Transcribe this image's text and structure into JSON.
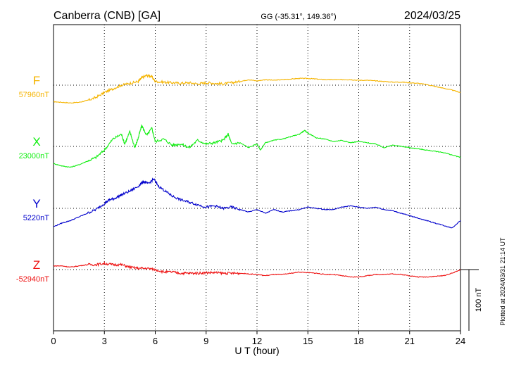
{
  "header": {
    "station": "Canberra (CNB)  [GA]",
    "coords": "GG (-35.31°, 149.36°)",
    "date": "2024/03/25"
  },
  "footer_note": "Plotted at 2024/03/31 21:14 UT",
  "chart_data": {
    "type": "line",
    "xlabel": "U T (hour)",
    "xlim": [
      0,
      24
    ],
    "xticks": [
      0,
      3,
      6,
      9,
      12,
      15,
      18,
      21,
      24
    ],
    "grid": true,
    "scale_bar": {
      "label": "100 nT",
      "value_nT": 100
    },
    "series": [
      {
        "name": "F",
        "baseline_label": "57960nT",
        "color": "#f5b400",
        "x": [
          0,
          0.5,
          1,
          1.5,
          2,
          2.5,
          3,
          3.5,
          4,
          4.5,
          5,
          5.2,
          5.5,
          5.8,
          6,
          6.5,
          7,
          7.5,
          8,
          8.5,
          9,
          9.5,
          10,
          10.5,
          11,
          11.5,
          12,
          12.5,
          13,
          13.5,
          14,
          14.5,
          15,
          15.5,
          16,
          16.5,
          17,
          17.5,
          18,
          18.5,
          19,
          19.5,
          20,
          20.5,
          21,
          21.5,
          22,
          22.5,
          23,
          23.5,
          24
        ],
        "y": [
          -27,
          -28,
          -29,
          -28,
          -25,
          -20,
          -12,
          -6,
          0,
          3,
          6,
          12,
          16,
          14,
          6,
          5,
          4,
          3,
          4,
          2,
          4,
          3,
          2,
          4,
          6,
          9,
          7,
          9,
          8,
          9,
          10,
          11,
          11,
          10,
          9,
          9,
          9,
          9,
          8,
          8,
          7,
          6,
          5,
          5,
          4,
          3,
          1,
          -2,
          -5,
          -8,
          -12
        ]
      },
      {
        "name": "X",
        "baseline_label": "23000nT",
        "color": "#11ee11",
        "x": [
          0,
          0.5,
          1,
          1.5,
          2,
          2.5,
          3,
          3.5,
          4,
          4.2,
          4.5,
          4.8,
          5,
          5.2,
          5.5,
          5.8,
          6,
          6.5,
          7,
          7.5,
          8,
          8.5,
          9,
          9.5,
          10,
          10.3,
          10.5,
          11,
          11.5,
          12,
          12.2,
          12.5,
          13,
          13.5,
          14,
          14.5,
          14.8,
          15,
          15.5,
          16,
          16.5,
          17,
          17.5,
          18,
          18.5,
          19,
          19.5,
          20,
          20.5,
          21,
          21.5,
          22,
          22.5,
          23,
          23.5,
          24
        ],
        "y": [
          -28,
          -32,
          -34,
          -30,
          -24,
          -18,
          -6,
          12,
          20,
          4,
          24,
          -2,
          14,
          34,
          18,
          30,
          8,
          12,
          2,
          4,
          -2,
          10,
          4,
          6,
          10,
          20,
          4,
          6,
          -2,
          4,
          -6,
          6,
          10,
          12,
          16,
          20,
          26,
          22,
          14,
          12,
          8,
          10,
          6,
          8,
          6,
          4,
          -2,
          2,
          0,
          -2,
          -4,
          -6,
          -8,
          -10,
          -14,
          -18
        ]
      },
      {
        "name": "Y",
        "baseline_label": "5220nT",
        "color": "#0000cc",
        "x": [
          0,
          0.5,
          1,
          1.5,
          2,
          2.5,
          3,
          3.3,
          3.6,
          4,
          4.5,
          5,
          5.3,
          5.6,
          5.9,
          6.2,
          6.6,
          7,
          7.5,
          8,
          8.5,
          9,
          9.5,
          10,
          10.5,
          11,
          11.5,
          12,
          12.5,
          13,
          13.5,
          14,
          14.5,
          15,
          15.5,
          16,
          16.5,
          17,
          17.5,
          18,
          18.5,
          19,
          19.5,
          20,
          20.5,
          21,
          21.5,
          22,
          22.5,
          23,
          23.5,
          24
        ],
        "y": [
          -30,
          -24,
          -20,
          -14,
          -8,
          -2,
          8,
          14,
          16,
          22,
          28,
          36,
          44,
          40,
          48,
          36,
          28,
          20,
          14,
          10,
          6,
          2,
          4,
          0,
          2,
          -2,
          -6,
          -2,
          -8,
          -2,
          -6,
          -4,
          -2,
          2,
          0,
          -2,
          -2,
          2,
          4,
          2,
          0,
          2,
          -2,
          -4,
          -8,
          -12,
          -16,
          -20,
          -24,
          -28,
          -32,
          -20
        ]
      },
      {
        "name": "Z",
        "baseline_label": "-52940nT",
        "color": "#ee1111",
        "x": [
          0,
          0.5,
          1,
          1.5,
          2,
          2.5,
          3,
          3.5,
          4,
          4.5,
          5,
          5.5,
          6,
          6.5,
          7,
          7.5,
          8,
          8.5,
          9,
          9.5,
          10,
          10.5,
          11,
          11.5,
          12,
          12.5,
          13,
          13.5,
          14,
          14.5,
          15,
          15.5,
          16,
          16.5,
          17,
          17.5,
          18,
          18.5,
          19,
          19.5,
          20,
          20.5,
          21,
          21.5,
          22,
          22.5,
          23,
          23.5,
          24
        ],
        "y": [
          6,
          6,
          4,
          6,
          8,
          8,
          10,
          8,
          8,
          4,
          2,
          2,
          0,
          -4,
          -4,
          -6,
          -6,
          -6,
          -5,
          -5,
          -6,
          -6,
          -6,
          -7,
          -8,
          -10,
          -8,
          -8,
          -6,
          -4,
          -5,
          -6,
          -8,
          -8,
          -10,
          -12,
          -12,
          -10,
          -8,
          -8,
          -7,
          -8,
          -10,
          -12,
          -12,
          -11,
          -10,
          -6,
          0
        ]
      }
    ]
  }
}
